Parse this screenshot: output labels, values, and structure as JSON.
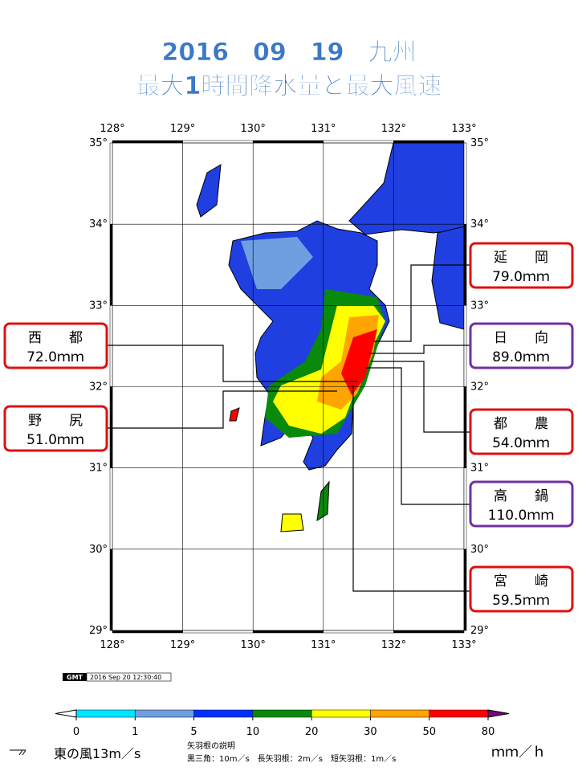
{
  "header": {
    "title_line1": "2016／09／19　九州",
    "title_line2": "最大1時間降水量と最大風速"
  },
  "map": {
    "lon_labels": [
      "128°",
      "129°",
      "130°",
      "131°",
      "132°",
      "133°"
    ],
    "lat_labels": [
      "35°",
      "34°",
      "33°",
      "32°",
      "31°",
      "30°",
      "29°"
    ]
  },
  "callouts": [
    {
      "name": "延　　岡",
      "value": "79.0ｍｍ",
      "color": "#e01010",
      "side": "right"
    },
    {
      "name": "日　　向",
      "value": "89.0ｍｍ",
      "color": "#7030a0",
      "side": "right"
    },
    {
      "name": "都　　農",
      "value": "54.0ｍｍ",
      "color": "#e01010",
      "side": "right"
    },
    {
      "name": "高　　鍋",
      "value": "110.0ｍｍ",
      "color": "#7030a0",
      "side": "right"
    },
    {
      "name": "宮　　崎",
      "value": "59.5ｍｍ",
      "color": "#e01010",
      "side": "right"
    },
    {
      "name": "西　　都",
      "value": "72.0ｍｍ",
      "color": "#e01010",
      "side": "left"
    },
    {
      "name": "野　　尻",
      "value": "51.0ｍｍ",
      "color": "#e01010",
      "side": "left"
    }
  ],
  "stamp": {
    "logo": "GMT",
    "time": "2016 Sep 20 12:30:40"
  },
  "colorbar": {
    "levels": [
      0,
      1,
      5,
      10,
      20,
      30,
      50,
      80
    ],
    "colors": [
      "#00e5ff",
      "#6f9fe0",
      "#0030ff",
      "#0a8a0a",
      "#ffff00",
      "#ffa500",
      "#ff0000"
    ],
    "under_color": "#ffffff",
    "over_color": "#7f007f",
    "unit": "ｍｍ／ｈ"
  },
  "legend": {
    "sample": "東の風13m／s",
    "heading": "矢羽根の説明",
    "detail": "黒三角：10m／s　長矢羽根：2m／s　短矢羽根：1m／s"
  }
}
